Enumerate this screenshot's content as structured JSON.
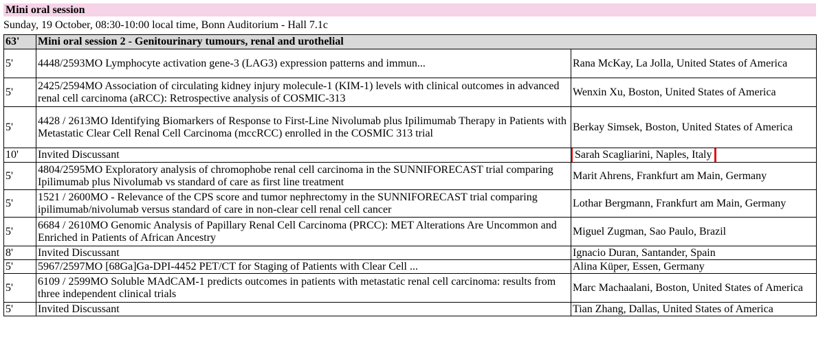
{
  "session": {
    "title": "Mini oral session",
    "info": "Sunday, 19 October, 08:30-10:00 local time, Bonn Auditorium - Hall 7.1c"
  },
  "group": {
    "duration": "63'",
    "title": "Mini oral session 2 - Genitourinary tumours, renal and urothelial"
  },
  "rows": [
    {
      "duration": "5'",
      "title": "4448/2593MO Lymphocyte activation gene-3 (LAG3) expression patterns and immun...",
      "speaker": "Rana McKay, La Jolla, United States of America"
    },
    {
      "duration": "5'",
      "title": "2425/2594MO Association of circulating kidney injury molecule-1 (KIM-1) levels with clinical outcomes in advanced renal cell carcinoma (aRCC): Retrospective analysis of COSMIC-313",
      "speaker": "Wenxin Xu, Boston, United States of America"
    },
    {
      "duration": "5'",
      "title": "4428 / 2613MO Identifying Biomarkers of Response to First-Line Nivolumab plus Ipilimumab Therapy in Patients with Metastatic Clear Cell Renal Cell Carcinoma (mccRCC) enrolled in the COSMIC 313 trial",
      "speaker": "Berkay Simsek, Boston, United States of America"
    },
    {
      "duration": "10'",
      "title": "Invited Discussant",
      "speaker": "Sarah Scagliarini, Naples, Italy"
    },
    {
      "duration": "5'",
      "title": "4804/2595MO Exploratory analysis of chromophobe renal cell carcinoma in the SUNNIFORECAST trial comparing Ipilimumab plus Nivolumab vs standard of care as first line treatment",
      "speaker": "Marit Ahrens, Frankfurt am Main, Germany"
    },
    {
      "duration": "5'",
      "title": "1521 / 2600MO - Relevance of the CPS score and tumor nephrectomy in the SUNNIFORECAST trial comparing ipilimumab/nivolumab versus standard of care in non-clear cell renal cell cancer",
      "speaker": "Lothar Bergmann, Frankfurt am Main, Germany"
    },
    {
      "duration": "5'",
      "title": "6684 / 2610MO Genomic Analysis of Papillary Renal Cell Carcinoma (PRCC): MET Alterations Are Uncommon and Enriched in Patients of African Ancestry",
      "speaker": "Miguel Zugman, Sao Paulo, Brazil"
    },
    {
      "duration": "8'",
      "title": "Invited Discussant",
      "speaker": "Ignacio Duran, Santander, Spain"
    },
    {
      "duration": "5'",
      "title": "5967/2597MO [68Ga]Ga-DPI-4452 PET/CT for Staging of Patients with Clear Cell ...",
      "speaker": "Alina Küper, Essen, Germany"
    },
    {
      "duration": "5'",
      "title": "6109 / 2599MO Soluble MAdCAM-1 predicts outcomes in patients with metastatic renal cell carcinoma: results from three independent clinical trials",
      "speaker": "Marc Machaalani, Boston, United States of America"
    },
    {
      "duration": "5'",
      "title": "Invited Discussant",
      "speaker": "Tian Zhang, Dallas, United States of America"
    }
  ],
  "highlight_color": "#e01313",
  "header_bg": "#f6d3e7",
  "group_bg": "#d9d9d9"
}
